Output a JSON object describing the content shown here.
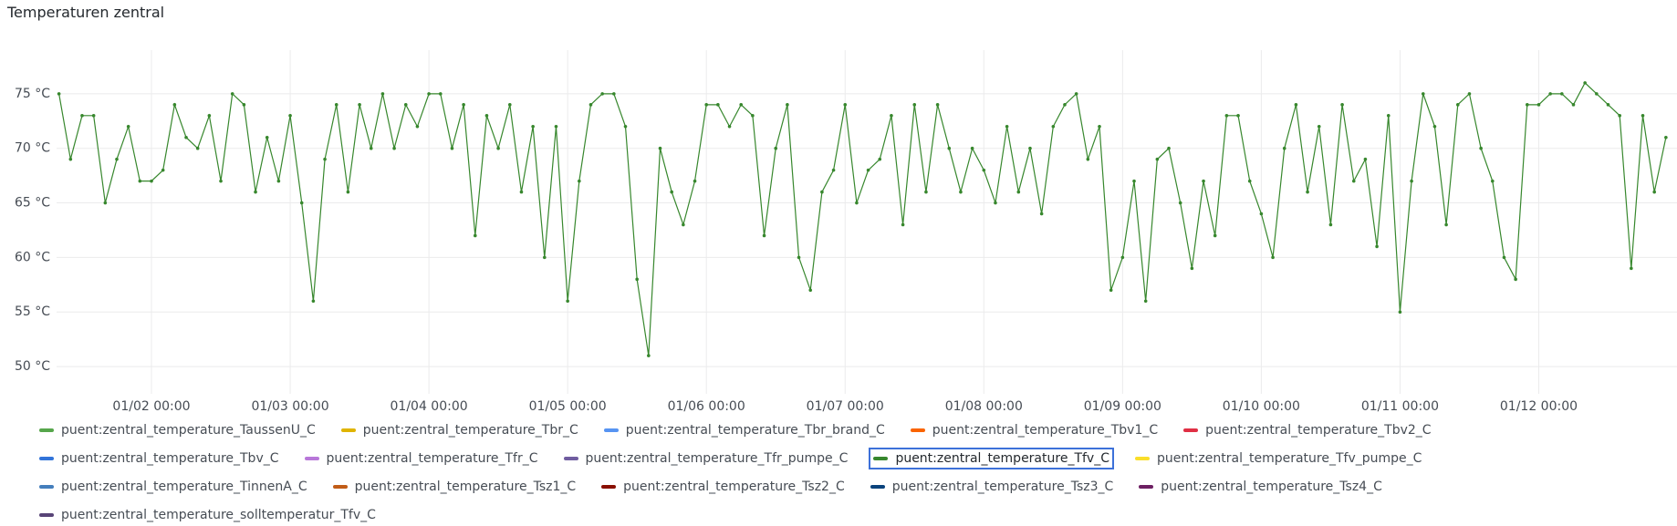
{
  "chart_data": {
    "type": "line",
    "title": "Temperaturen zentral",
    "x": [
      "01/01 08:00",
      "01/01 10:00",
      "01/01 12:00",
      "01/01 14:00",
      "01/01 16:00",
      "01/01 18:00",
      "01/01 20:00",
      "01/01 22:00",
      "01/02 00:00",
      "01/02 02:00",
      "01/02 04:00",
      "01/02 06:00",
      "01/02 08:00",
      "01/02 10:00",
      "01/02 12:00",
      "01/02 14:00",
      "01/02 16:00",
      "01/02 18:00",
      "01/02 20:00",
      "01/02 22:00",
      "01/03 00:00",
      "01/03 02:00",
      "01/03 04:00",
      "01/03 06:00",
      "01/03 08:00",
      "01/03 10:00",
      "01/03 12:00",
      "01/03 14:00",
      "01/03 16:00",
      "01/03 18:00",
      "01/03 20:00",
      "01/03 22:00",
      "01/04 00:00",
      "01/04 02:00",
      "01/04 04:00",
      "01/04 06:00",
      "01/04 08:00",
      "01/04 10:00",
      "01/04 12:00",
      "01/04 14:00",
      "01/04 16:00",
      "01/04 18:00",
      "01/04 20:00",
      "01/04 22:00",
      "01/05 00:00",
      "01/05 02:00",
      "01/05 04:00",
      "01/05 06:00",
      "01/05 08:00",
      "01/05 10:00",
      "01/05 12:00",
      "01/05 14:00",
      "01/05 16:00",
      "01/05 18:00",
      "01/05 20:00",
      "01/05 22:00",
      "01/06 00:00",
      "01/06 02:00",
      "01/06 04:00",
      "01/06 06:00",
      "01/06 08:00",
      "01/06 10:00",
      "01/06 12:00",
      "01/06 14:00",
      "01/06 16:00",
      "01/06 18:00",
      "01/06 20:00",
      "01/06 22:00",
      "01/07 00:00",
      "01/07 02:00",
      "01/07 04:00",
      "01/07 06:00",
      "01/07 08:00",
      "01/07 10:00",
      "01/07 12:00",
      "01/07 14:00",
      "01/07 16:00",
      "01/07 18:00",
      "01/07 20:00",
      "01/07 22:00",
      "01/08 00:00",
      "01/08 02:00",
      "01/08 04:00",
      "01/08 06:00",
      "01/08 08:00",
      "01/08 10:00",
      "01/08 12:00",
      "01/08 14:00",
      "01/08 16:00",
      "01/08 18:00",
      "01/08 20:00",
      "01/08 22:00",
      "01/09 00:00",
      "01/09 02:00",
      "01/09 04:00",
      "01/09 06:00",
      "01/09 08:00",
      "01/09 10:00",
      "01/09 12:00",
      "01/09 14:00",
      "01/09 16:00",
      "01/09 18:00",
      "01/09 20:00",
      "01/09 22:00",
      "01/10 00:00",
      "01/10 02:00",
      "01/10 04:00",
      "01/10 06:00",
      "01/10 08:00",
      "01/10 10:00",
      "01/10 12:00",
      "01/10 14:00",
      "01/10 16:00",
      "01/10 18:00",
      "01/10 20:00",
      "01/10 22:00",
      "01/11 00:00",
      "01/11 02:00",
      "01/11 04:00",
      "01/11 06:00",
      "01/11 08:00",
      "01/11 10:00",
      "01/11 12:00",
      "01/11 14:00",
      "01/11 16:00",
      "01/11 18:00",
      "01/11 20:00",
      "01/11 22:00",
      "01/12 00:00",
      "01/12 02:00",
      "01/12 04:00",
      "01/12 06:00",
      "01/12 08:00",
      "01/12 10:00",
      "01/12 12:00",
      "01/12 14:00",
      "01/12 16:00",
      "01/12 18:00",
      "01/12 20:00",
      "01/12 22:00"
    ],
    "series": [
      {
        "name": "puent:zentral_temperature_TaussenU_C",
        "color": "#56a64b"
      },
      {
        "name": "puent:zentral_temperature_Tbr_C",
        "color": "#e0b400"
      },
      {
        "name": "puent:zentral_temperature_Tbr_brand_C",
        "color": "#5794f2"
      },
      {
        "name": "puent:zentral_temperature_Tbv1_C",
        "color": "#fa6400"
      },
      {
        "name": "puent:zentral_temperature_Tbv2_C",
        "color": "#e02f44"
      },
      {
        "name": "puent:zentral_temperature_Tbv_C",
        "color": "#3274d9"
      },
      {
        "name": "puent:zentral_temperature_Tfr_C",
        "color": "#b877d9"
      },
      {
        "name": "puent:zentral_temperature_Tfr_pumpe_C",
        "color": "#705da0"
      },
      {
        "name": "puent:zentral_temperature_Tfv_C",
        "color": "#37872d",
        "values": [
          75,
          69,
          73,
          73,
          65,
          69,
          72,
          67,
          67,
          68,
          74,
          71,
          70,
          73,
          67,
          75,
          74,
          66,
          71,
          67,
          73,
          65,
          56,
          69,
          74,
          66,
          74,
          70,
          75,
          70,
          74,
          72,
          75,
          75,
          70,
          74,
          62,
          73,
          70,
          74,
          66,
          72,
          60,
          72,
          56,
          67,
          74,
          75,
          75,
          72,
          58,
          51,
          70,
          66,
          63,
          67,
          74,
          74,
          72,
          74,
          73,
          62,
          70,
          74,
          60,
          57,
          66,
          68,
          74,
          65,
          68,
          69,
          73,
          63,
          74,
          66,
          74,
          70,
          66,
          70,
          68,
          65,
          72,
          66,
          70,
          64,
          72,
          74,
          75,
          69,
          72,
          57,
          60,
          67,
          56,
          69,
          70,
          65,
          59,
          67,
          62,
          73,
          73,
          67,
          64,
          60,
          70,
          74,
          66,
          72,
          63,
          74,
          67,
          69,
          61,
          73,
          55,
          67,
          75,
          72,
          63,
          74,
          75,
          70,
          67,
          60,
          58,
          74,
          74,
          75,
          75,
          74,
          76,
          75,
          74,
          73,
          59,
          73,
          66,
          71
        ]
      },
      {
        "name": "puent:zentral_temperature_Tfv_pumpe_C",
        "color": "#fade2a"
      },
      {
        "name": "puent:zentral_temperature_TinnenA_C",
        "color": "#447ebc"
      },
      {
        "name": "puent:zentral_temperature_Tsz1_C",
        "color": "#c15c17"
      },
      {
        "name": "puent:zentral_temperature_Tsz2_C",
        "color": "#890f02"
      },
      {
        "name": "puent:zentral_temperature_Tsz3_C",
        "color": "#0a437c"
      },
      {
        "name": "puent:zentral_temperature_Tsz4_C",
        "color": "#6d1f62"
      },
      {
        "name": "puent:zentral_temperature_solltemperatur_Tfv_C",
        "color": "#584477"
      }
    ],
    "selected_series": 8,
    "xlim": [
      "01/01 07:35",
      "01/12 23:55"
    ],
    "xticks": [
      "01/02 00:00",
      "01/03 00:00",
      "01/04 00:00",
      "01/05 00:00",
      "01/06 00:00",
      "01/07 00:00",
      "01/08 00:00",
      "01/09 00:00",
      "01/10 00:00",
      "01/11 00:00",
      "01/12 00:00"
    ],
    "ylim": [
      47.5,
      79
    ],
    "yticks": [
      {
        "value": 50,
        "label": "50 °C"
      },
      {
        "value": 55,
        "label": "55 °C"
      },
      {
        "value": 60,
        "label": "60 °C"
      },
      {
        "value": 65,
        "label": "65 °C"
      },
      {
        "value": 70,
        "label": "70 °C"
      },
      {
        "value": 75,
        "label": "75 °C"
      }
    ],
    "grid": true
  }
}
